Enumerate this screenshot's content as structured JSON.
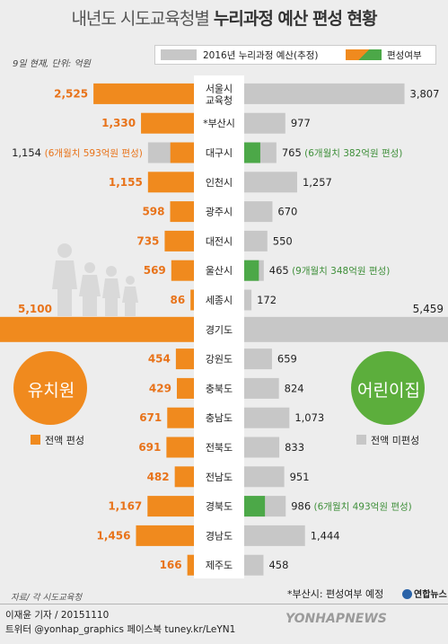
{
  "header": {
    "title_prefix": "내년도 시도교육청별",
    "title_strong": "누리과정 예산 편성 현황",
    "unit_note": "9일 현재, 단위: 억원"
  },
  "legend": {
    "gray_label": "2016년 누리과정 예산(추정)",
    "split_label": "편성여부"
  },
  "groups": {
    "kindergarten": "유치원",
    "daycare": "어린이집",
    "kindergarten_swatch_label": "전액 편성",
    "daycare_swatch_label": "전액 미편성"
  },
  "colors": {
    "orange": "#f08a1e",
    "orange_text": "#e8731a",
    "gray": "#c7c7c7",
    "green": "#4ca848",
    "green_text": "#3f8f3a",
    "green_circle": "#5cae3c",
    "orange_circle": "#f08a1e"
  },
  "chart_data": {
    "type": "bar",
    "title": "내년도 시도교육청별 누리과정 예산 편성 현황",
    "unit": "억원",
    "categories": [
      "서울시\n교육청",
      "*부산시",
      "대구시",
      "인천시",
      "광주시",
      "대전시",
      "울산시",
      "세종시",
      "경기도",
      "강원도",
      "충북도",
      "충남도",
      "전북도",
      "전남도",
      "경북도",
      "경남도",
      "제주도"
    ],
    "series": [
      {
        "name": "유치원",
        "values": [
          2525,
          1330,
          1154,
          1155,
          598,
          735,
          569,
          86,
          5100,
          454,
          429,
          671,
          691,
          482,
          1167,
          1456,
          166
        ],
        "funded": [
          2525,
          1330,
          593,
          1155,
          598,
          735,
          569,
          86,
          5100,
          454,
          429,
          671,
          691,
          482,
          1167,
          1456,
          166
        ],
        "labels": [
          "2,525",
          "1,330",
          "1,154",
          "1,155",
          "598",
          "735",
          "569",
          "86",
          "5,100",
          "454",
          "429",
          "671",
          "691",
          "482",
          "1,167",
          "1,456",
          "166"
        ],
        "notes": [
          "",
          "",
          "(6개월치 593억원 편성)",
          "",
          "",
          "",
          "",
          "",
          "",
          "",
          "",
          "",
          "",
          "",
          "",
          "",
          ""
        ]
      },
      {
        "name": "어린이집",
        "values": [
          3807,
          977,
          765,
          1257,
          670,
          550,
          465,
          172,
          5459,
          659,
          824,
          1073,
          833,
          951,
          986,
          1444,
          458
        ],
        "funded": [
          0,
          0,
          382,
          0,
          0,
          0,
          348,
          0,
          0,
          0,
          0,
          0,
          0,
          0,
          493,
          0,
          0
        ],
        "labels": [
          "3,807",
          "977",
          "765",
          "1,257",
          "670",
          "550",
          "465",
          "172",
          "5,459",
          "659",
          "824",
          "1,073",
          "833",
          "951",
          "986",
          "1,444",
          "458"
        ],
        "notes": [
          "",
          "",
          "(6개월치 382억원 편성)",
          "",
          "",
          "",
          "(9개월치 348억원 편성)",
          "",
          "",
          "",
          "",
          "",
          "",
          "",
          "(6개월치 493억원 편성)",
          "",
          ""
        ]
      }
    ],
    "xlim": [
      0,
      5459
    ],
    "legend": [
      "2016년 누리과정 예산(추정)",
      "편성여부"
    ]
  },
  "footer": {
    "note": "*부산시: 편성여부 예정",
    "source": "자료/ 각 시도교육청",
    "byline": "이재윤 기자 / 20151110",
    "twitter": "트위터 @yonhap_graphics  페이스북 tuney.kr/LeYN1",
    "agency": "연합뉴스",
    "watermark": "YONHAPNEWS"
  }
}
